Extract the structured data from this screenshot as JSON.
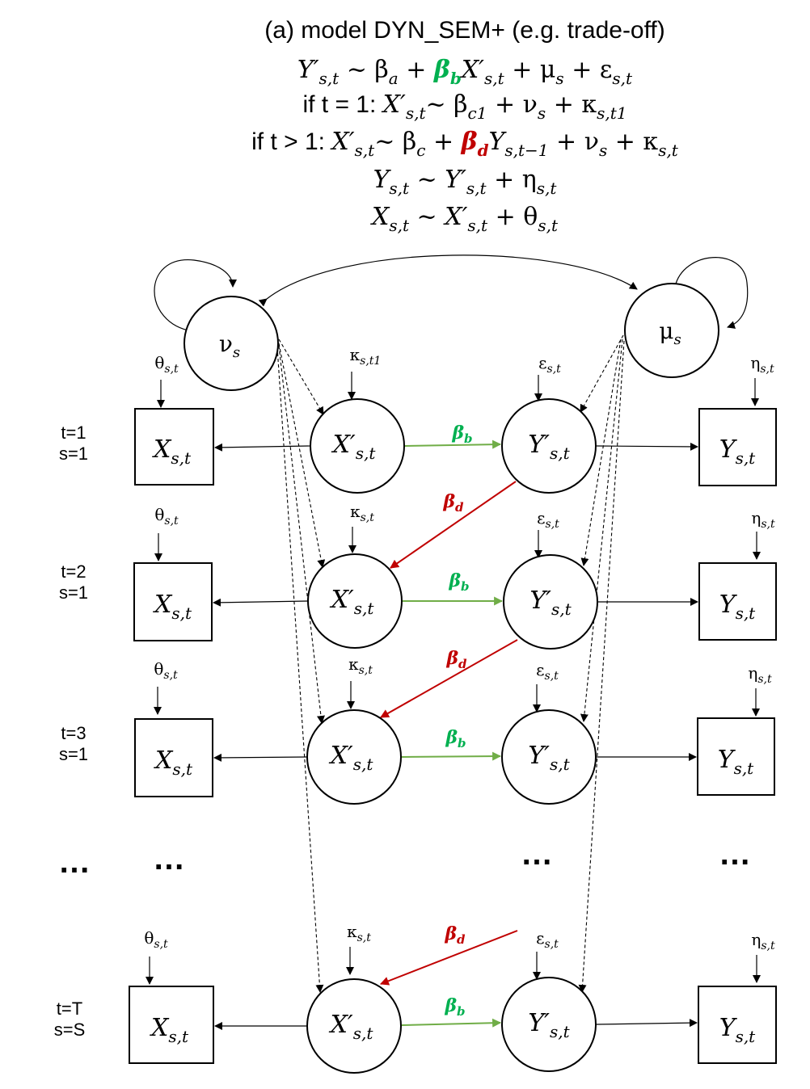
{
  "title": "(a) model DYN_SEM+ (e.g. trade-off)",
  "equations": {
    "eq1": {
      "lhs": "Y′",
      "lhs_sub": "s,t",
      "rel": " ~ β",
      "a_sub": "a",
      "plus1": " + ",
      "beta_b": "β",
      "beta_b_sub": "b",
      "x": "X′",
      "x_sub": "s,t",
      "rest": " + μ",
      "mu_sub": "s",
      "eps": " + ε",
      "eps_sub": "s,t"
    },
    "eq2": {
      "cond": "if t = 1: ",
      "x": "X′",
      "x_sub": "s,t",
      "rel": "~ β",
      "c_sub": "c1",
      "nu": " + ν",
      "nu_sub": "s",
      "kappa": " + κ",
      "kappa_sub": "s,t1"
    },
    "eq3": {
      "cond": "if t > 1: ",
      "x": "X′",
      "x_sub": "s,t",
      "rel": "~ β",
      "c_sub": "c",
      "plus": " + ",
      "beta_d": "β",
      "beta_d_sub": "d",
      "y": "Y",
      "y_sub": "s,t−1",
      "nu": " + ν",
      "nu_sub": "s",
      "kappa": " + κ",
      "kappa_sub": "s,t"
    },
    "eq4": {
      "y": "Y",
      "y_sub": "s,t",
      "rel": " ~ Y′",
      "y2_sub": "s,t",
      "eta": " + η",
      "eta_sub": "s,t"
    },
    "eq5": {
      "x": "X",
      "x_sub": "s,t",
      "rel": " ~ X′",
      "x2_sub": "s,t",
      "theta": " + θ",
      "theta_sub": "s,t"
    }
  },
  "latent": {
    "nu": {
      "sym": "ν",
      "sub": "s"
    },
    "mu": {
      "sym": "μ",
      "sub": "s"
    }
  },
  "nodes": {
    "X": {
      "sym": "X",
      "sub": "s,t"
    },
    "Xp": {
      "sym": "X′",
      "sub": "s,t"
    },
    "Yp": {
      "sym": "Y′",
      "sub": "s,t"
    },
    "Y": {
      "sym": "Y",
      "sub": "s,t"
    }
  },
  "errors": {
    "theta": {
      "sym": "θ",
      "sub": "s,t"
    },
    "kappa1": {
      "sym": "κ",
      "sub": "s,t1"
    },
    "kappa": {
      "sym": "κ",
      "sub": "s,t"
    },
    "eps": {
      "sym": "ε",
      "sub": "s,t"
    },
    "eta": {
      "sym": "η",
      "sub": "s,t"
    }
  },
  "coefficients": {
    "beta_b": {
      "sym": "β",
      "sub": "b"
    },
    "beta_d": {
      "sym": "β",
      "sub": "d"
    }
  },
  "rows": [
    {
      "t": "t=1",
      "s": "s=1"
    },
    {
      "t": "t=2",
      "s": "s=1"
    },
    {
      "t": "t=3",
      "s": "s=1"
    },
    {
      "t": "t=T",
      "s": "s=S"
    }
  ],
  "ellipsis": "…",
  "colors": {
    "green": "#70ad47",
    "green_text": "#00b050",
    "red": "#c00000",
    "black": "#000000"
  }
}
